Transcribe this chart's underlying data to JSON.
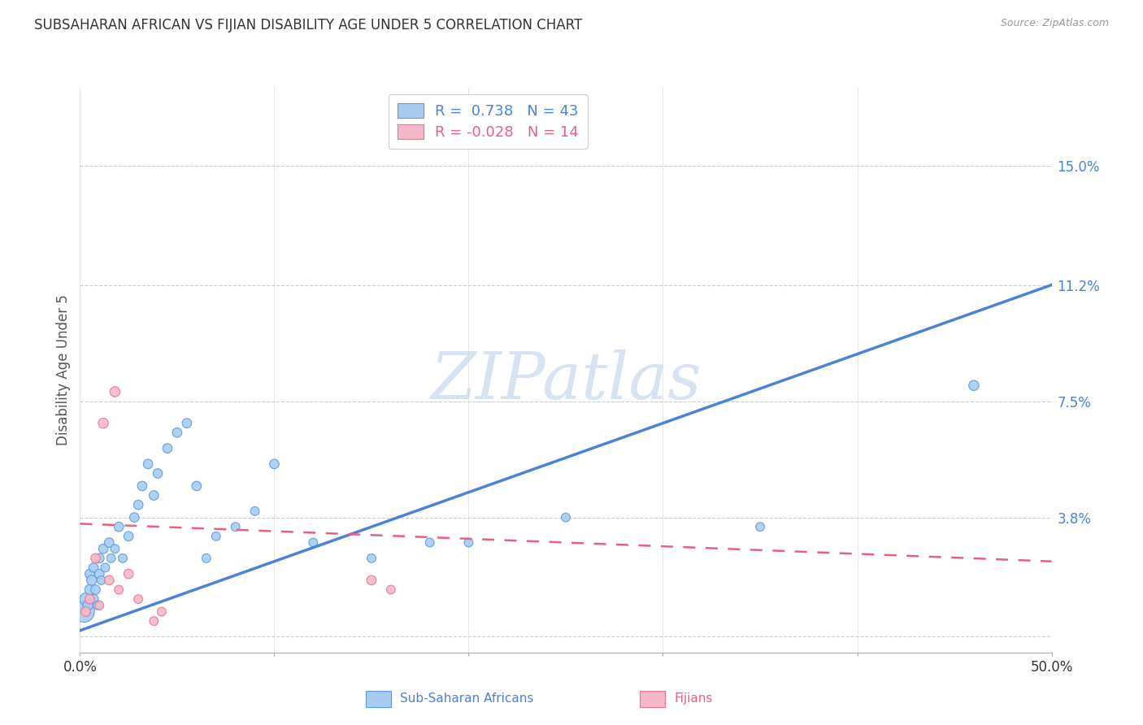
{
  "title": "SUBSAHARAN AFRICAN VS FIJIAN DISABILITY AGE UNDER 5 CORRELATION CHART",
  "source": "Source: ZipAtlas.com",
  "ylabel": "Disability Age Under 5",
  "yticks": [
    0.0,
    0.038,
    0.075,
    0.112,
    0.15
  ],
  "ytick_labels": [
    "",
    "3.8%",
    "7.5%",
    "11.2%",
    "15.0%"
  ],
  "xlim": [
    0.0,
    0.5
  ],
  "ylim": [
    -0.005,
    0.175
  ],
  "blue_R": 0.738,
  "blue_N": 43,
  "pink_R": -0.028,
  "pink_N": 14,
  "blue_color": "#A8CCF0",
  "pink_color": "#F5B8C8",
  "blue_edge_color": "#5A9AE0",
  "pink_edge_color": "#F07090",
  "blue_line_color": "#4A82D8",
  "pink_line_color": "#E86080",
  "watermark_color": "#C8D8EC",
  "blue_scatter_x": [
    0.002,
    0.003,
    0.004,
    0.005,
    0.005,
    0.006,
    0.007,
    0.007,
    0.008,
    0.009,
    0.01,
    0.01,
    0.011,
    0.012,
    0.013,
    0.015,
    0.016,
    0.018,
    0.02,
    0.022,
    0.025,
    0.028,
    0.03,
    0.032,
    0.035,
    0.038,
    0.04,
    0.045,
    0.05,
    0.055,
    0.06,
    0.065,
    0.07,
    0.08,
    0.09,
    0.1,
    0.12,
    0.15,
    0.18,
    0.2,
    0.25,
    0.35,
    0.46
  ],
  "blue_scatter_y": [
    0.008,
    0.012,
    0.01,
    0.015,
    0.02,
    0.018,
    0.012,
    0.022,
    0.015,
    0.01,
    0.02,
    0.025,
    0.018,
    0.028,
    0.022,
    0.03,
    0.025,
    0.028,
    0.035,
    0.025,
    0.032,
    0.038,
    0.042,
    0.048,
    0.055,
    0.045,
    0.052,
    0.06,
    0.065,
    0.068,
    0.048,
    0.025,
    0.032,
    0.035,
    0.04,
    0.055,
    0.03,
    0.025,
    0.03,
    0.03,
    0.038,
    0.035,
    0.08
  ],
  "blue_scatter_size": [
    350,
    120,
    80,
    80,
    70,
    80,
    70,
    70,
    70,
    60,
    70,
    70,
    60,
    70,
    60,
    70,
    60,
    60,
    70,
    60,
    70,
    70,
    70,
    70,
    70,
    70,
    70,
    70,
    70,
    70,
    70,
    60,
    60,
    60,
    60,
    70,
    60,
    60,
    60,
    60,
    60,
    60,
    80
  ],
  "pink_scatter_x": [
    0.003,
    0.005,
    0.008,
    0.01,
    0.015,
    0.02,
    0.025,
    0.03,
    0.038,
    0.042,
    0.15,
    0.16,
    0.012,
    0.018
  ],
  "pink_scatter_y": [
    0.008,
    0.012,
    0.025,
    0.01,
    0.018,
    0.015,
    0.02,
    0.012,
    0.005,
    0.008,
    0.018,
    0.015,
    0.068,
    0.078
  ],
  "pink_scatter_size": [
    70,
    70,
    70,
    60,
    70,
    60,
    70,
    60,
    60,
    60,
    70,
    60,
    80,
    80
  ],
  "blue_line_x0": 0.0,
  "blue_line_x1": 0.5,
  "blue_line_y0": 0.002,
  "blue_line_y1": 0.112,
  "pink_line_x0": 0.0,
  "pink_line_x1": 0.5,
  "pink_line_y0": 0.036,
  "pink_line_y1": 0.024
}
